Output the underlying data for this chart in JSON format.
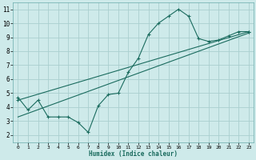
{
  "xlabel": "Humidex (Indice chaleur)",
  "bg_color": "#ceeaea",
  "grid_color": "#aacfcf",
  "line_color": "#1a6b5e",
  "xlim": [
    -0.5,
    23.5
  ],
  "ylim": [
    1.5,
    11.5
  ],
  "xticks": [
    0,
    1,
    2,
    3,
    4,
    5,
    6,
    7,
    8,
    9,
    10,
    11,
    12,
    13,
    14,
    15,
    16,
    17,
    18,
    19,
    20,
    21,
    22,
    23
  ],
  "yticks": [
    2,
    3,
    4,
    5,
    6,
    7,
    8,
    9,
    10,
    11
  ],
  "curve1_x": [
    0,
    1,
    2,
    3,
    4,
    5,
    6,
    7,
    8,
    9,
    10,
    11,
    12,
    13,
    14,
    15,
    16,
    17,
    18,
    19,
    20,
    21,
    22,
    23
  ],
  "curve1_y": [
    4.7,
    3.8,
    4.5,
    3.3,
    3.3,
    3.3,
    2.9,
    2.2,
    4.1,
    4.9,
    5.0,
    6.5,
    7.5,
    9.2,
    10.0,
    10.5,
    11.0,
    10.5,
    8.9,
    8.7,
    8.8,
    9.1,
    9.4,
    9.4
  ],
  "curve2_x": [
    0,
    23
  ],
  "curve2_y": [
    3.3,
    9.3
  ],
  "curve3_x": [
    0,
    23
  ],
  "curve3_y": [
    4.5,
    9.4
  ],
  "marker": "+"
}
